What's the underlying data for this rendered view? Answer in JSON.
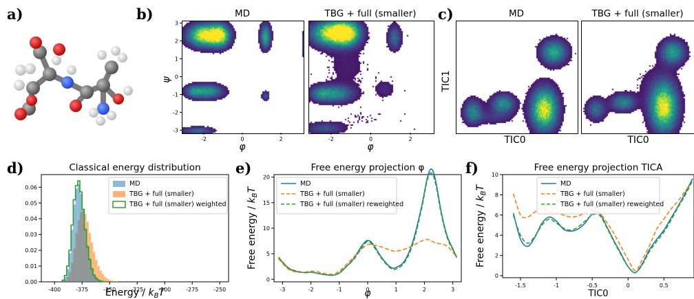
{
  "panels": {
    "a": {
      "label": "a)"
    },
    "b": {
      "label": "b)",
      "titles": [
        "MD",
        "TBG + full (smaller)"
      ],
      "xlabel": "φ",
      "ylabel": "ψ",
      "xticks": [
        "-2",
        "0",
        "2"
      ],
      "yticks": [
        "3",
        "2",
        "1",
        "0",
        "-1",
        "-2",
        "-3"
      ]
    },
    "c": {
      "label": "c)",
      "titles": [
        "MD",
        "TBG + full (smaller)"
      ],
      "xlabel": "TIC0",
      "ylabel": "TIC1"
    },
    "d": {
      "label": "d)",
      "title": "Classical energy distribution"
    },
    "e": {
      "label": "e)",
      "title": "Free energy projection φ"
    },
    "f": {
      "label": "f)",
      "title": "Free energy projection TICA"
    }
  },
  "colors": {
    "md": "#1f77b4",
    "tbg": "#ff7f0e",
    "reweighted": "#2ca02c",
    "hist_md": "#8fb8d9",
    "hist_tbg": "#ffb27a",
    "viridis_low": "#440154",
    "viridis_high": "#fde725"
  },
  "chart_data": [
    {
      "id": "d",
      "type": "bar",
      "title": "Classical energy distribution",
      "xlabel": "Energy  / kBT",
      "ylabel": "",
      "xlim": [
        -412,
        -242
      ],
      "ylim": [
        0,
        0.068
      ],
      "xticks": [
        -400,
        -375,
        -350,
        -325,
        -300,
        -275,
        -250
      ],
      "yticks": [
        0.0,
        0.01,
        0.02,
        0.03,
        0.04,
        0.05,
        0.06
      ],
      "legend": [
        "MD",
        "TBG + full (smaller)",
        "TBG + full (smaller) weighted"
      ],
      "legend_position": "top-right",
      "series": [
        {
          "name": "MD",
          "style": "filled",
          "x": [
            -392,
            -390,
            -388,
            -386,
            -384,
            -382,
            -380,
            -378,
            -376,
            -374,
            -372,
            -370,
            -368,
            -366,
            -364,
            -362,
            -360,
            -358,
            -356
          ],
          "values": [
            0.001,
            0.003,
            0.008,
            0.018,
            0.033,
            0.049,
            0.059,
            0.062,
            0.056,
            0.046,
            0.034,
            0.023,
            0.015,
            0.009,
            0.005,
            0.003,
            0.0015,
            0.0007,
            0.0003
          ]
        },
        {
          "name": "TBG + full (smaller)",
          "style": "filled",
          "x": [
            -390,
            -388,
            -386,
            -384,
            -382,
            -380,
            -378,
            -376,
            -374,
            -372,
            -370,
            -368,
            -366,
            -364,
            -362,
            -360,
            -358,
            -356,
            -354,
            -352,
            -350,
            -348,
            -346,
            -344
          ],
          "values": [
            0.001,
            0.003,
            0.006,
            0.012,
            0.021,
            0.031,
            0.039,
            0.044,
            0.045,
            0.043,
            0.038,
            0.031,
            0.025,
            0.019,
            0.014,
            0.01,
            0.007,
            0.005,
            0.003,
            0.002,
            0.0012,
            0.0007,
            0.0004,
            0.0002
          ]
        },
        {
          "name": "TBG + full (smaller) weighted",
          "style": "step",
          "x": [
            -392,
            -390,
            -388,
            -386,
            -384,
            -382,
            -380,
            -378,
            -376,
            -374,
            -372,
            -370,
            -368,
            -366,
            -364,
            -362,
            -360,
            -358,
            -356,
            -354
          ],
          "values": [
            0.001,
            0.004,
            0.01,
            0.02,
            0.036,
            0.052,
            0.061,
            0.064,
            0.057,
            0.046,
            0.033,
            0.022,
            0.014,
            0.008,
            0.004,
            0.002,
            0.001,
            0.0005,
            0.0002,
            0.0001
          ]
        }
      ]
    },
    {
      "id": "e",
      "type": "line",
      "title": "Free energy projection φ",
      "xlabel": "φ",
      "ylabel": "Free energy / kBT",
      "xlim": [
        -3.3,
        3.3
      ],
      "ylim": [
        -0.5,
        20.5
      ],
      "xticks": [
        -3,
        -2,
        -1,
        0,
        1,
        2,
        3
      ],
      "yticks": [
        0,
        5,
        10,
        15,
        20
      ],
      "legend": [
        "MD",
        "TBG + full (smaller)",
        "TBG + full (smaller) reweighted"
      ],
      "legend_position": "top-left",
      "x": [
        -3.14,
        -2.8,
        -2.5,
        -2.2,
        -2.0,
        -1.8,
        -1.5,
        -1.2,
        -1.0,
        -0.8,
        -0.5,
        -0.2,
        0.0,
        0.2,
        0.5,
        0.8,
        1.0,
        1.3,
        1.6,
        1.9,
        2.1,
        2.25,
        2.4,
        2.6,
        2.8,
        3.0,
        3.14
      ],
      "series": [
        {
          "name": "MD",
          "style": "solid",
          "values": [
            4.2,
            2.2,
            1.5,
            1.3,
            1.4,
            1.2,
            0.9,
            0.8,
            1.2,
            2.2,
            4.0,
            6.6,
            7.6,
            6.8,
            4.2,
            2.4,
            2.3,
            3.6,
            7.5,
            14.2,
            19.8,
            21.6,
            19.2,
            13.0,
            8.5,
            6.0,
            4.2
          ]
        },
        {
          "name": "TBG + full (smaller)",
          "style": "dashed",
          "values": [
            4.0,
            2.0,
            1.4,
            1.4,
            1.6,
            1.5,
            1.1,
            1.0,
            1.6,
            2.6,
            4.3,
            6.0,
            6.8,
            6.7,
            6.3,
            5.7,
            5.5,
            5.9,
            6.6,
            7.5,
            7.8,
            7.5,
            7.1,
            6.9,
            6.5,
            5.3,
            4.3
          ]
        },
        {
          "name": "TBG + full (smaller) reweighted",
          "style": "dashed",
          "values": [
            4.3,
            2.3,
            1.6,
            1.3,
            1.4,
            1.2,
            0.9,
            0.8,
            1.3,
            2.3,
            3.8,
            6.2,
            7.4,
            6.5,
            4.0,
            2.2,
            2.0,
            3.3,
            7.0,
            13.8,
            19.4,
            20.8,
            18.6,
            12.6,
            8.2,
            5.8,
            4.4
          ]
        }
      ]
    },
    {
      "id": "f",
      "type": "line",
      "title": "Free energy projection TICA",
      "xlabel": "TIC0",
      "ylabel": "Free energy / kBT",
      "xlim": [
        -1.75,
        0.92
      ],
      "ylim": [
        -0.2,
        10.0
      ],
      "xticks": [
        -1.5,
        -1.0,
        -0.5,
        0.0,
        0.5
      ],
      "yticks": [
        0,
        2,
        4,
        6,
        8,
        10
      ],
      "legend": [
        "MD",
        "TBG + full (smaller)",
        "TBG + full (smaller) reweighted"
      ],
      "legend_position": "top-center",
      "x": [
        -1.6,
        -1.5,
        -1.4,
        -1.3,
        -1.2,
        -1.1,
        -1.0,
        -0.9,
        -0.8,
        -0.7,
        -0.6,
        -0.5,
        -0.4,
        -0.3,
        -0.2,
        -0.1,
        0.0,
        0.1,
        0.2,
        0.3,
        0.4,
        0.5,
        0.6,
        0.7,
        0.8,
        0.9
      ],
      "series": [
        {
          "name": "MD",
          "style": "solid",
          "values": [
            6.2,
            3.6,
            2.9,
            3.8,
            5.2,
            5.8,
            5.4,
            4.6,
            4.4,
            4.6,
            5.2,
            6.1,
            6.2,
            4.9,
            3.5,
            2.2,
            0.9,
            0.3,
            1.2,
            2.6,
            3.6,
            4.5,
            5.7,
            6.9,
            8.2,
            9.6
          ]
        },
        {
          "name": "TBG + full (smaller)",
          "style": "dashed",
          "values": [
            8.1,
            6.0,
            5.8,
            6.3,
            6.7,
            6.3,
            6.2,
            6.0,
            5.8,
            5.9,
            6.2,
            6.4,
            6.2,
            5.3,
            4.2,
            2.9,
            1.6,
            0.5,
            1.6,
            3.0,
            4.6,
            5.6,
            6.6,
            7.4,
            8.4,
            9.3
          ]
        },
        {
          "name": "TBG + full (smaller) reweighted",
          "style": "dashed",
          "values": [
            6.0,
            4.0,
            3.2,
            3.9,
            5.0,
            5.6,
            5.2,
            4.7,
            4.5,
            4.8,
            5.4,
            6.0,
            6.0,
            4.8,
            3.4,
            2.1,
            0.9,
            0.3,
            1.1,
            2.4,
            3.4,
            4.3,
            5.5,
            6.8,
            8.0,
            9.4
          ]
        }
      ]
    },
    {
      "id": "b",
      "type": "heatmap",
      "titles": [
        "MD",
        "TBG + full (smaller)"
      ],
      "xlabel": "φ",
      "ylabel": "ψ",
      "xlim": [
        -3.14,
        3.14
      ],
      "ylim": [
        -3.14,
        3.14
      ],
      "xticks": [
        -2,
        0,
        2
      ],
      "yticks": [
        -3,
        -2,
        -1,
        0,
        1,
        2,
        3
      ],
      "colormap": "viridis"
    },
    {
      "id": "c",
      "type": "heatmap",
      "titles": [
        "MD",
        "TBG + full (smaller)"
      ],
      "xlabel": "TIC0",
      "ylabel": "TIC1",
      "colormap": "viridis"
    }
  ]
}
